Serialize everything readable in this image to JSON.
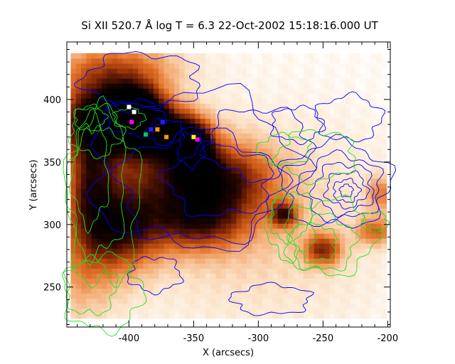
{
  "chart_data": {
    "type": "heatmap",
    "title": "Si XII  520.7 Å log T = 6.3 22-Oct-2002 15:18:16.000 UT",
    "xlabel": "X (arcsecs)",
    "ylabel": "Y (arcsecs)",
    "xlim": [
      -448,
      -198
    ],
    "ylim": [
      218,
      446
    ],
    "x_ticks": [
      -400,
      -350,
      -300,
      -250,
      -200
    ],
    "y_ticks": [
      250,
      300,
      350,
      400
    ],
    "x_tick_labels": [
      "-400",
      "-350",
      "-300",
      "-250",
      "-200"
    ],
    "y_tick_labels": [
      "250",
      "300",
      "350",
      "400"
    ],
    "image_extent": {
      "x": [
        -445,
        -202
      ],
      "y": [
        225,
        437
      ]
    },
    "colormap": [
      "#ffffff",
      "#fbe3c8",
      "#f4b07a",
      "#e4752b",
      "#b4470f",
      "#6a1c04",
      "#1c0400",
      "#000000"
    ],
    "intensity_blobs": [
      {
        "x": -418,
        "y": 385,
        "sx": 26,
        "sy": 20,
        "a": 0.95
      },
      {
        "x": -378,
        "y": 375,
        "sx": 20,
        "sy": 14,
        "a": 0.85
      },
      {
        "x": -350,
        "y": 360,
        "sx": 10,
        "sy": 14,
        "a": 0.95
      },
      {
        "x": -395,
        "y": 395,
        "sx": 14,
        "sy": 12,
        "a": 0.7
      },
      {
        "x": -330,
        "y": 335,
        "sx": 30,
        "sy": 20,
        "a": 0.55
      },
      {
        "x": -375,
        "y": 330,
        "sx": 40,
        "sy": 30,
        "a": 0.45
      },
      {
        "x": -430,
        "y": 330,
        "sx": 14,
        "sy": 35,
        "a": 0.55
      },
      {
        "x": -405,
        "y": 295,
        "sx": 20,
        "sy": 22,
        "a": 0.55
      },
      {
        "x": -345,
        "y": 300,
        "sx": 25,
        "sy": 15,
        "a": 0.4
      },
      {
        "x": -410,
        "y": 425,
        "sx": 35,
        "sy": 15,
        "a": 0.45
      },
      {
        "x": -280,
        "y": 308,
        "sx": 7,
        "sy": 7,
        "a": 0.6
      },
      {
        "x": -250,
        "y": 280,
        "sx": 10,
        "sy": 9,
        "a": 0.55
      },
      {
        "x": -210,
        "y": 295,
        "sx": 10,
        "sy": 8,
        "a": 0.4
      },
      {
        "x": -205,
        "y": 325,
        "sx": 8,
        "sy": 10,
        "a": 0.35
      },
      {
        "x": -300,
        "y": 300,
        "sx": 70,
        "sy": 60,
        "a": 0.18
      },
      {
        "x": -440,
        "y": 260,
        "sx": 25,
        "sy": 30,
        "a": 0.25
      }
    ],
    "saturated_pixels": [
      {
        "x": -400,
        "y": 394,
        "color": "#ffffff"
      },
      {
        "x": -396,
        "y": 390,
        "color": "#ffffff"
      },
      {
        "x": -398,
        "y": 382,
        "color": "#ff00ff"
      },
      {
        "x": -387,
        "y": 372,
        "color": "#00cc44"
      },
      {
        "x": -383,
        "y": 376,
        "color": "#2020ff"
      },
      {
        "x": -378,
        "y": 376,
        "color": "#ff9900"
      },
      {
        "x": -374,
        "y": 382,
        "color": "#2020ff"
      },
      {
        "x": -371,
        "y": 370,
        "color": "#ff9900"
      },
      {
        "x": -350,
        "y": 370,
        "color": "#ffff00"
      },
      {
        "x": -347,
        "y": 368,
        "color": "#ff00ff"
      }
    ],
    "contour_sets": [
      {
        "color": "#0000ff",
        "rings": [
          {
            "cx": -232,
            "cy": 327,
            "rx": 5,
            "ry": 5
          },
          {
            "cx": -232,
            "cy": 327,
            "rx": 10,
            "ry": 9
          },
          {
            "cx": -232,
            "cy": 328,
            "rx": 16,
            "ry": 14
          },
          {
            "cx": -234,
            "cy": 329,
            "rx": 23,
            "ry": 20
          },
          {
            "cx": -236,
            "cy": 330,
            "rx": 31,
            "ry": 26
          },
          {
            "cx": -240,
            "cy": 332,
            "rx": 42,
            "ry": 34
          },
          {
            "cx": -395,
            "cy": 385,
            "rx": 22,
            "ry": 14
          },
          {
            "cx": -352,
            "cy": 360,
            "rx": 10,
            "ry": 14
          },
          {
            "cx": -372,
            "cy": 374,
            "rx": 14,
            "ry": 10
          },
          {
            "cx": -330,
            "cy": 335,
            "rx": 40,
            "ry": 28
          },
          {
            "cx": -345,
            "cy": 330,
            "rx": 62,
            "ry": 44
          },
          {
            "cx": -350,
            "cy": 345,
            "rx": 80,
            "ry": 62
          },
          {
            "cx": -300,
            "cy": 365,
            "rx": 40,
            "ry": 28
          },
          {
            "cx": -390,
            "cy": 415,
            "rx": 45,
            "ry": 22
          },
          {
            "cx": -290,
            "cy": 240,
            "rx": 30,
            "ry": 12
          },
          {
            "cx": -230,
            "cy": 385,
            "rx": 25,
            "ry": 18
          },
          {
            "cx": -270,
            "cy": 380,
            "rx": 20,
            "ry": 14
          },
          {
            "cx": -380,
            "cy": 260,
            "rx": 20,
            "ry": 14
          }
        ]
      },
      {
        "color": "#22dd22",
        "rings": [
          {
            "cx": -430,
            "cy": 385,
            "rx": 12,
            "ry": 10
          },
          {
            "cx": -425,
            "cy": 375,
            "rx": 20,
            "ry": 20
          },
          {
            "cx": -430,
            "cy": 340,
            "rx": 14,
            "ry": 40
          },
          {
            "cx": -425,
            "cy": 330,
            "rx": 22,
            "ry": 55
          },
          {
            "cx": -420,
            "cy": 320,
            "rx": 28,
            "ry": 70
          },
          {
            "cx": -400,
            "cy": 385,
            "rx": 12,
            "ry": 8
          },
          {
            "cx": -280,
            "cy": 305,
            "rx": 10,
            "ry": 18
          },
          {
            "cx": -275,
            "cy": 300,
            "rx": 18,
            "ry": 28
          },
          {
            "cx": -255,
            "cy": 285,
            "rx": 15,
            "ry": 15
          },
          {
            "cx": -250,
            "cy": 285,
            "rx": 25,
            "ry": 22
          },
          {
            "cx": -245,
            "cy": 290,
            "rx": 35,
            "ry": 30
          },
          {
            "cx": -210,
            "cy": 302,
            "rx": 10,
            "ry": 8
          },
          {
            "cx": -255,
            "cy": 355,
            "rx": 30,
            "ry": 20
          },
          {
            "cx": -280,
            "cy": 360,
            "rx": 20,
            "ry": 12
          },
          {
            "cx": -430,
            "cy": 250,
            "rx": 20,
            "ry": 22
          },
          {
            "cx": -420,
            "cy": 245,
            "rx": 30,
            "ry": 30
          }
        ]
      }
    ]
  }
}
